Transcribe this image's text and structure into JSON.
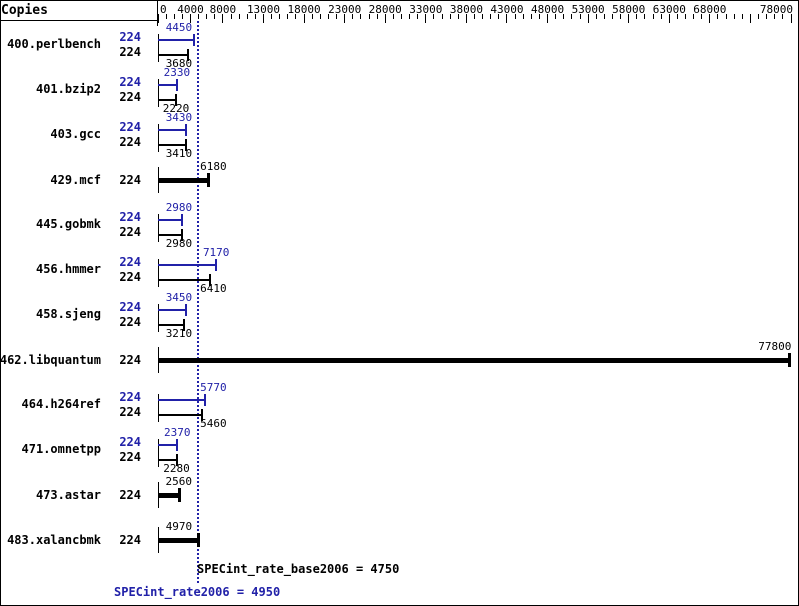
{
  "chart_data": {
    "type": "bar",
    "orientation": "horizontal",
    "copies_column_label": "Copies",
    "axis": {
      "min": 0,
      "max": 78000,
      "minor_step": 1000,
      "major_ticks": [
        0,
        4000,
        8000,
        13000,
        18000,
        23000,
        28000,
        33000,
        38000,
        43000,
        48000,
        53000,
        58000,
        63000,
        68000,
        73000,
        78000
      ],
      "labeled_ticks": [
        0,
        4000,
        8000,
        13000,
        18000,
        23000,
        28000,
        33000,
        38000,
        43000,
        48000,
        53000,
        58000,
        63000,
        68000,
        78000
      ]
    },
    "benchmarks": [
      {
        "name": "400.perlbench",
        "bars": [
          {
            "kind": "peak",
            "copies": "224",
            "value": 4450
          },
          {
            "kind": "base",
            "copies": "224",
            "value": 3680
          }
        ]
      },
      {
        "name": "401.bzip2",
        "bars": [
          {
            "kind": "peak",
            "copies": "224",
            "value": 2330
          },
          {
            "kind": "base",
            "copies": "224",
            "value": 2220
          }
        ]
      },
      {
        "name": "403.gcc",
        "bars": [
          {
            "kind": "peak",
            "copies": "224",
            "value": 3430
          },
          {
            "kind": "base",
            "copies": "224",
            "value": 3410
          }
        ]
      },
      {
        "name": "429.mcf",
        "bars": [
          {
            "kind": "single",
            "copies": "224",
            "value": 6180
          }
        ]
      },
      {
        "name": "445.gobmk",
        "bars": [
          {
            "kind": "peak",
            "copies": "224",
            "value": 2980
          },
          {
            "kind": "base",
            "copies": "224",
            "value": 2980
          }
        ]
      },
      {
        "name": "456.hmmer",
        "bars": [
          {
            "kind": "peak",
            "copies": "224",
            "value": 7170
          },
          {
            "kind": "base",
            "copies": "224",
            "value": 6410
          }
        ]
      },
      {
        "name": "458.sjeng",
        "bars": [
          {
            "kind": "peak",
            "copies": "224",
            "value": 3450
          },
          {
            "kind": "base",
            "copies": "224",
            "value": 3210
          }
        ]
      },
      {
        "name": "462.libquantum",
        "bars": [
          {
            "kind": "single",
            "copies": "224",
            "value": 77800
          }
        ]
      },
      {
        "name": "464.h264ref",
        "bars": [
          {
            "kind": "peak",
            "copies": "224",
            "value": 5770
          },
          {
            "kind": "base",
            "copies": "224",
            "value": 5460
          }
        ]
      },
      {
        "name": "471.omnetpp",
        "bars": [
          {
            "kind": "peak",
            "copies": "224",
            "value": 2370
          },
          {
            "kind": "base",
            "copies": "224",
            "value": 2280
          }
        ]
      },
      {
        "name": "473.astar",
        "bars": [
          {
            "kind": "single",
            "copies": "224",
            "value": 2560
          }
        ]
      },
      {
        "name": "483.xalancbmk",
        "bars": [
          {
            "kind": "single",
            "copies": "224",
            "value": 4970
          }
        ]
      }
    ],
    "reference_line": {
      "value": 4950
    },
    "summary": {
      "base": {
        "metric": "SPECint_rate_base2006",
        "value": 4750,
        "text": "SPECint_rate_base2006 = 4750"
      },
      "peak": {
        "metric": "SPECint_rate2006",
        "value": 4950,
        "text": "SPECint_rate2006 = 4950"
      }
    },
    "colors": {
      "peak": "#2121a8",
      "base": "#000000"
    }
  }
}
